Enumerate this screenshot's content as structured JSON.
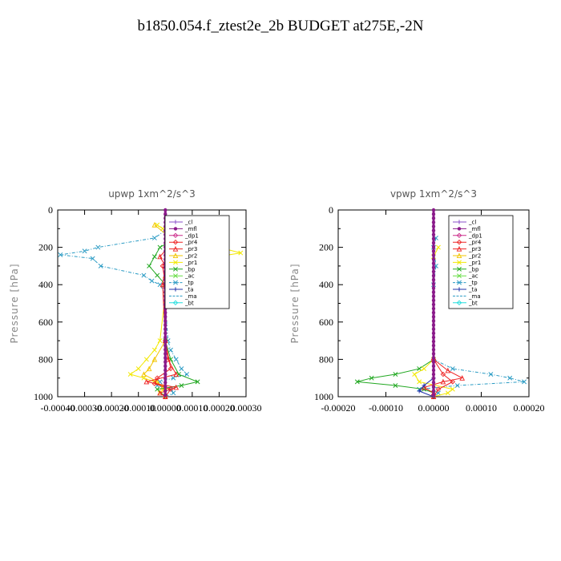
{
  "page_title": "b1850.054.f_ztest2e_2b  BUDGET at275E,-2N",
  "legend_items": [
    {
      "name": "_cl",
      "color": "#8a4fc9",
      "marker": "+"
    },
    {
      "name": "_mfl",
      "color": "#8a1a8a",
      "marker": "dot"
    },
    {
      "name": "_dp1",
      "color": "#cc2b8a",
      "marker": "diamond"
    },
    {
      "name": "_pr4",
      "color": "#ee2222",
      "marker": "diamond"
    },
    {
      "name": "_pr3",
      "color": "#ee2222",
      "marker": "tri"
    },
    {
      "name": "_pr2",
      "color": "#f2c500",
      "marker": "tri"
    },
    {
      "name": "_pr1",
      "color": "#f2e800",
      "marker": "x"
    },
    {
      "name": "_bp",
      "color": "#22a822",
      "marker": "x"
    },
    {
      "name": "_ac",
      "color": "#66dd44",
      "marker": "x"
    },
    {
      "name": "_tp",
      "color": "#2a9bc4",
      "marker": "x"
    },
    {
      "name": "_ta",
      "color": "#2233aa",
      "marker": "+"
    },
    {
      "name": "_ma",
      "color": "#2a9bc4",
      "marker": "none"
    },
    {
      "name": "_bt",
      "color": "#22dddd",
      "marker": "diamond"
    }
  ],
  "chart_data": [
    {
      "type": "line",
      "title": "upwp   1xm^2/s^3",
      "ylabel": "Pressure [hPa]",
      "xlim": [
        -0.0004,
        0.0003
      ],
      "ylim": [
        1000,
        0
      ],
      "xticks": [
        -0.0004,
        -0.0003,
        -0.0002,
        -0.0001,
        0.0,
        0.0001,
        0.0002,
        0.0003
      ],
      "xtick_labels": [
        "-0.00040",
        "-0.00030",
        "-0.00020",
        "-0.00010",
        "0.00000",
        "0.00010",
        "0.00020",
        "0.00030"
      ],
      "yticks": [
        0,
        200,
        400,
        600,
        800,
        1000
      ],
      "ytick_labels": [
        "0",
        "200",
        "400",
        "600",
        "800",
        "1000"
      ],
      "legend_position": "top-right",
      "grid": false,
      "series": [
        {
          "name": "_tp",
          "pressure": [
            80,
            100,
            150,
            200,
            220,
            240,
            260,
            300,
            350,
            380,
            400,
            450,
            500,
            700,
            750,
            800,
            850,
            880,
            900,
            920,
            940,
            960,
            980,
            1000
          ],
          "values": [
            1e-05,
            1e-05,
            -4e-05,
            -0.00025,
            -0.0003,
            -0.00039,
            -0.00027,
            -0.00024,
            -8e-05,
            -5e-05,
            -2e-05,
            0.0,
            0.0,
            1e-05,
            2e-05,
            4e-05,
            6e-05,
            8e-05,
            3e-05,
            -2e-05,
            -3e-05,
            2e-05,
            3e-05,
            0.0
          ]
        },
        {
          "name": "_pr1",
          "pressure": [
            80,
            100,
            150,
            200,
            230,
            260,
            300,
            350,
            400,
            450,
            700,
            750,
            800,
            850,
            880,
            900,
            920,
            950,
            980,
            1000
          ],
          "values": [
            -3e-05,
            -1e-05,
            4e-05,
            0.0002,
            0.00028,
            0.00015,
            4e-05,
            1e-05,
            0.0,
            0.0,
            -2e-05,
            -4e-05,
            -7e-05,
            -0.0001,
            -0.00013,
            -8e-05,
            -4e-05,
            0.0,
            -2e-05,
            0.0
          ]
        },
        {
          "name": "_pr2",
          "pressure": [
            80,
            150,
            200,
            240,
            280,
            350,
            400,
            700,
            800,
            850,
            880,
            920,
            950,
            1000
          ],
          "values": [
            -4e-05,
            2e-05,
            8e-05,
            9e-05,
            3e-05,
            0.0,
            0.0,
            0.0,
            -4e-05,
            -6e-05,
            -8e-05,
            -3e-05,
            -1e-05,
            0.0
          ]
        },
        {
          "name": "_bp",
          "pressure": [
            100,
            150,
            200,
            250,
            300,
            350,
            400,
            700,
            800,
            880,
            920,
            940,
            960,
            1000
          ],
          "values": [
            2e-05,
            4e-05,
            -2e-05,
            -4e-05,
            -6e-05,
            -3e-05,
            0.0,
            0.0,
            2e-05,
            5e-05,
            0.00012,
            6e-05,
            -3e-05,
            0.0
          ]
        },
        {
          "name": "_pr3",
          "pressure": [
            100,
            150,
            200,
            250,
            300,
            400,
            700,
            800,
            880,
            920,
            950,
            980,
            1000
          ],
          "values": [
            1e-05,
            2e-05,
            1e-05,
            -2e-05,
            0.0,
            -1e-05,
            0.0,
            1e-05,
            4e-05,
            -7e-05,
            4e-05,
            -2e-05,
            0.0
          ]
        },
        {
          "name": "_pr4",
          "pressure": [
            100,
            200,
            300,
            400,
            700,
            850,
            900,
            930,
            960,
            1000
          ],
          "values": [
            1e-05,
            2e-05,
            -1e-05,
            0.0,
            0.0,
            2e-05,
            -3e-05,
            -4e-05,
            2e-05,
            0.0
          ]
        },
        {
          "name": "_mfl",
          "pressure": [
            0,
            1000
          ],
          "values": [
            0.0,
            0.0
          ]
        }
      ]
    },
    {
      "type": "line",
      "title": "vpwp   1xm^2/s^3",
      "ylabel": "Pressure [hPa]",
      "xlim": [
        -0.0002,
        0.0002
      ],
      "ylim": [
        1000,
        0
      ],
      "xticks": [
        -0.0002,
        -0.0001,
        0.0,
        0.0001,
        0.0002
      ],
      "xtick_labels": [
        "-0.00020",
        "-0.00010",
        "0.00000",
        "0.00010",
        "0.00020"
      ],
      "yticks": [
        0,
        200,
        400,
        600,
        800,
        1000
      ],
      "ytick_labels": [
        "0",
        "200",
        "400",
        "600",
        "800",
        "1000"
      ],
      "legend_position": "top-right",
      "grid": false,
      "series": [
        {
          "name": "_tp",
          "pressure": [
            150,
            200,
            300,
            400,
            800,
            850,
            880,
            900,
            920,
            940,
            960,
            980,
            1000
          ],
          "values": [
            5e-06,
            0.0,
            5e-06,
            0.0,
            0.0,
            4e-05,
            0.00012,
            0.00016,
            0.00019,
            5e-05,
            -3e-05,
            1e-05,
            0.0
          ]
        },
        {
          "name": "_bp",
          "pressure": [
            800,
            850,
            880,
            900,
            920,
            940,
            960,
            980,
            1000
          ],
          "values": [
            0.0,
            -3e-05,
            -8e-05,
            -0.00013,
            -0.00016,
            -8e-05,
            -2e-05,
            0.0,
            0.0
          ]
        },
        {
          "name": "_pr1",
          "pressure": [
            200,
            250,
            800,
            850,
            880,
            920,
            960,
            980,
            1000
          ],
          "values": [
            1e-05,
            0.0,
            0.0,
            -2e-05,
            -4e-05,
            -3e-05,
            4e-05,
            3e-05,
            0.0
          ]
        },
        {
          "name": "_pr3",
          "pressure": [
            800,
            860,
            900,
            920,
            950,
            980,
            1000
          ],
          "values": [
            0.0,
            3e-05,
            6e-05,
            2e-05,
            -2e-05,
            0.0,
            0.0
          ]
        },
        {
          "name": "_pr4",
          "pressure": [
            800,
            880,
            920,
            960,
            1000
          ],
          "values": [
            0.0,
            2e-05,
            4e-05,
            1e-05,
            0.0
          ]
        },
        {
          "name": "_ta",
          "pressure": [
            900,
            940,
            970,
            1000
          ],
          "values": [
            0.0,
            -2e-05,
            -3e-05,
            0.0
          ]
        },
        {
          "name": "_mfl",
          "pressure": [
            0,
            1000
          ],
          "values": [
            0.0,
            0.0
          ]
        }
      ]
    }
  ]
}
